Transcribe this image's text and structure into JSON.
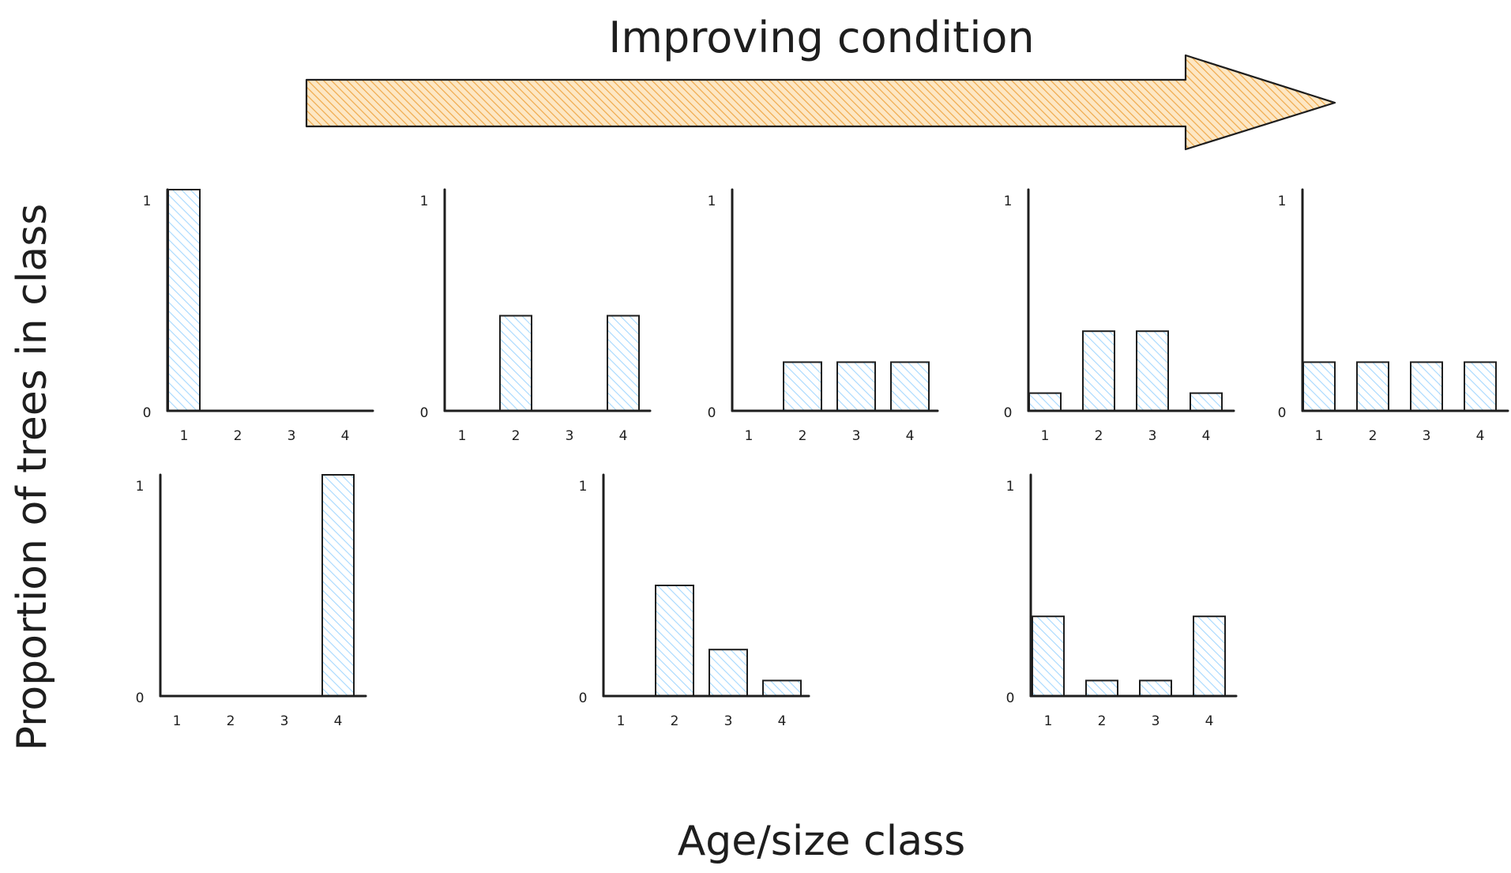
{
  "arrow_label": "Improving condition",
  "x_axis_title": "Age/size class",
  "y_axis_title": "Proportion of trees in class",
  "colors": {
    "arrow_fill": "#f5c27a",
    "arrow_stroke": "#1e1e1e",
    "bar_hatch": "#a5d8ff",
    "ink": "#1e1e1e"
  },
  "chart_data": [
    {
      "type": "bar",
      "categories": [
        "1",
        "2",
        "3",
        "4"
      ],
      "values": [
        1,
        0,
        0,
        0
      ],
      "ylim": [
        0,
        1
      ],
      "yticks": [
        "0",
        "1"
      ]
    },
    {
      "type": "bar",
      "categories": [
        "1",
        "2",
        "3",
        "4"
      ],
      "values": [
        0,
        0.43,
        0,
        0.43
      ],
      "ylim": [
        0,
        1
      ],
      "yticks": [
        "0",
        "1"
      ]
    },
    {
      "type": "bar",
      "categories": [
        "1",
        "2",
        "3",
        "4"
      ],
      "values": [
        0,
        0.22,
        0.22,
        0.22
      ],
      "ylim": [
        0,
        1
      ],
      "yticks": [
        "0",
        "1"
      ]
    },
    {
      "type": "bar",
      "categories": [
        "1",
        "2",
        "3",
        "4"
      ],
      "values": [
        0.08,
        0.36,
        0.36,
        0.08
      ],
      "ylim": [
        0,
        1
      ],
      "yticks": [
        "0",
        "1"
      ]
    },
    {
      "type": "bar",
      "categories": [
        "1",
        "2",
        "3",
        "4"
      ],
      "values": [
        0.22,
        0.22,
        0.22,
        0.22
      ],
      "ylim": [
        0,
        1
      ],
      "yticks": [
        "0",
        "1"
      ]
    },
    {
      "type": "bar",
      "categories": [
        "1",
        "2",
        "3",
        "4"
      ],
      "values": [
        0,
        0,
        0,
        1
      ],
      "ylim": [
        0,
        1
      ],
      "yticks": [
        "0",
        "1"
      ]
    },
    {
      "type": "bar",
      "categories": [
        "1",
        "2",
        "3",
        "4"
      ],
      "values": [
        0,
        0.5,
        0.21,
        0.07
      ],
      "ylim": [
        0,
        1
      ],
      "yticks": [
        "0",
        "1"
      ]
    },
    {
      "type": "bar",
      "categories": [
        "1",
        "2",
        "3",
        "4"
      ],
      "values": [
        0.36,
        0.07,
        0.07,
        0.36
      ],
      "ylim": [
        0,
        1
      ],
      "yticks": [
        "0",
        "1"
      ]
    }
  ]
}
